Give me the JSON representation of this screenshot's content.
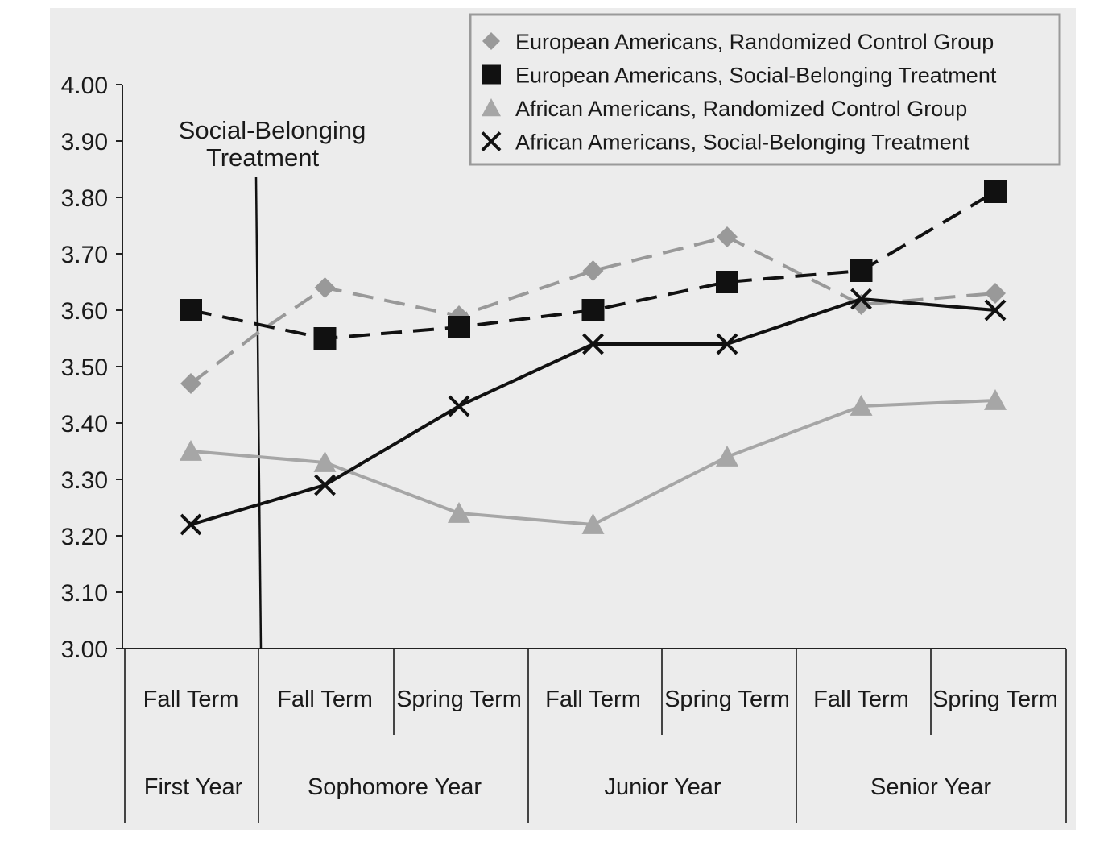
{
  "chart_data": {
    "type": "line",
    "ylim": [
      3.0,
      4.0
    ],
    "yticks": [
      "3.00",
      "3.10",
      "3.20",
      "3.30",
      "3.40",
      "3.50",
      "3.60",
      "3.70",
      "3.80",
      "3.90",
      "4.00"
    ],
    "terms": [
      "Fall Term",
      "Fall Term",
      "Spring Term",
      "Fall Term",
      "Spring Term",
      "Fall Term",
      "Spring Term"
    ],
    "years": [
      "First Year",
      "Sophomore Year",
      "Junior Year",
      "Senior Year"
    ],
    "annotation": {
      "line1": "Social-Belonging",
      "line2": "Treatment"
    },
    "legend_position": "top-right",
    "grid": false,
    "series": [
      {
        "name": "European Americans, Randomized Control Group",
        "marker": "diamond",
        "dash": "dashed",
        "color": "#999999",
        "values": [
          3.47,
          3.56,
          3.64,
          3.59,
          3.67,
          3.73,
          3.61,
          3.63
        ],
        "x": [
          0,
          0.5,
          1,
          2,
          3,
          4,
          5,
          6
        ]
      },
      {
        "name": "European Americans, Social-Belonging Treatment",
        "marker": "square",
        "dash": "dashed",
        "color": "#111111",
        "values": [
          3.6,
          3.55,
          3.57,
          3.6,
          3.65,
          3.67,
          3.81
        ],
        "x": [
          0,
          1,
          2,
          3,
          4,
          5,
          6
        ]
      },
      {
        "name": "African Americans, Randomized Control Group",
        "marker": "triangle",
        "dash": "solid",
        "color": "#a6a6a6",
        "values": [
          3.35,
          3.33,
          3.24,
          3.22,
          3.34,
          3.43,
          3.44
        ],
        "x": [
          0,
          1,
          2,
          3,
          4,
          5,
          6
        ]
      },
      {
        "name": "African Americans, Social-Belonging Treatment",
        "marker": "x",
        "dash": "solid",
        "color": "#111111",
        "values": [
          3.22,
          3.29,
          3.43,
          3.54,
          3.54,
          3.62,
          3.6
        ],
        "x": [
          0,
          1,
          2,
          3,
          4,
          5,
          6
        ]
      }
    ]
  }
}
